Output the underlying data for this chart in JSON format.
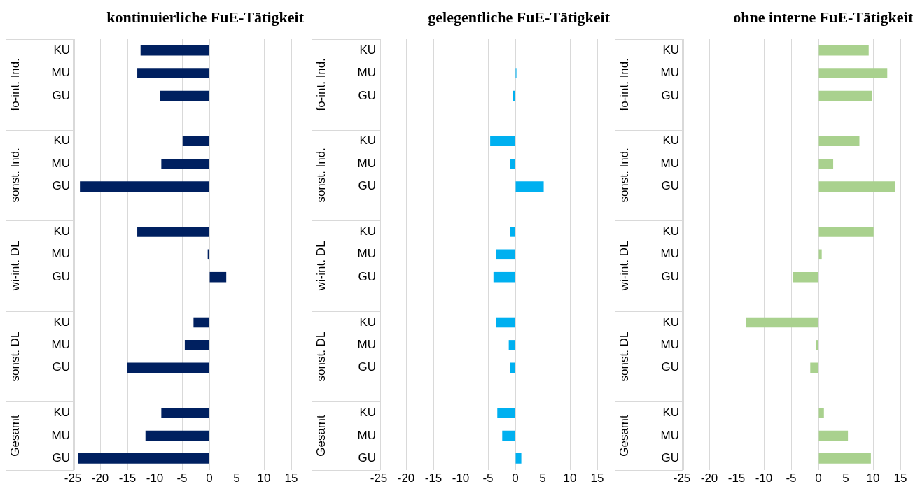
{
  "chart_data": [
    {
      "type": "bar",
      "orientation": "horizontal",
      "title": "kontinuierliche FuE-Tätigkeit",
      "categories": [
        "KU",
        "MU",
        "GU",
        null,
        "KU",
        "MU",
        "GU",
        null,
        "KU",
        "MU",
        "GU",
        null,
        "KU",
        "MU",
        "GU",
        null,
        "KU",
        "MU",
        "GU"
      ],
      "values": [
        -12.6,
        -13.2,
        -9.1,
        null,
        -4.9,
        -8.8,
        -23.7,
        null,
        -13.2,
        -0.3,
        3.1,
        null,
        -2.9,
        -4.5,
        -15.0,
        null,
        -8.8,
        -11.7,
        -24.0
      ],
      "color": "#002060",
      "xlim": [
        -25,
        15
      ],
      "xticks": [
        -25,
        -20,
        -15,
        -10,
        -5,
        0,
        5,
        10,
        15
      ],
      "grid": "x",
      "annotations": [
        "fo-int. Ind.",
        "sonst. Ind.",
        "wi-int. DL",
        "sonst. DL",
        "Gesamt"
      ]
    },
    {
      "type": "bar",
      "orientation": "horizontal",
      "title": "gelegentliche FuE-Tätigkeit",
      "categories": [
        "KU",
        "MU",
        "GU",
        null,
        "KU",
        "MU",
        "GU",
        null,
        "KU",
        "MU",
        "GU",
        null,
        "KU",
        "MU",
        "GU",
        null,
        "KU",
        "MU",
        "GU"
      ],
      "values": [
        0,
        0.2,
        -0.5,
        null,
        -4.6,
        -1.0,
        5.2,
        null,
        -0.9,
        -3.5,
        -4.0,
        null,
        -3.5,
        -1.2,
        -0.9,
        null,
        -3.3,
        -2.4,
        1.1
      ],
      "color": "#00b0f0",
      "xlim": [
        -25,
        15
      ],
      "xticks": [
        -25,
        -20,
        -15,
        -10,
        -5,
        0,
        5,
        10,
        15
      ],
      "grid": "x",
      "annotations": [
        "fo-int. Ind.",
        "sonst. Ind.",
        "wi-int. DL",
        "sonst. DL",
        "Gesamt"
      ]
    },
    {
      "type": "bar",
      "orientation": "horizontal",
      "title": "ohne interne FuE-Tätigkeit",
      "categories": [
        "KU",
        "MU",
        "GU",
        null,
        "KU",
        "MU",
        "GU",
        null,
        "KU",
        "MU",
        "GU",
        null,
        "KU",
        "MU",
        "GU",
        null,
        "KU",
        "MU",
        "GU"
      ],
      "values": [
        9.2,
        12.6,
        9.8,
        null,
        7.5,
        2.7,
        14.0,
        null,
        10.1,
        0.6,
        -4.7,
        null,
        -13.3,
        -0.5,
        -1.5,
        null,
        1.0,
        5.4,
        9.6
      ],
      "color": "#a9d18e",
      "xlim": [
        -25,
        15
      ],
      "xticks": [
        -25,
        -20,
        -15,
        -10,
        -5,
        0,
        5,
        10,
        15
      ],
      "grid": "x",
      "annotations": [
        "fo-int. Ind.",
        "sonst. Ind.",
        "wi-int. DL",
        "sonst. DL",
        "Gesamt"
      ]
    }
  ]
}
